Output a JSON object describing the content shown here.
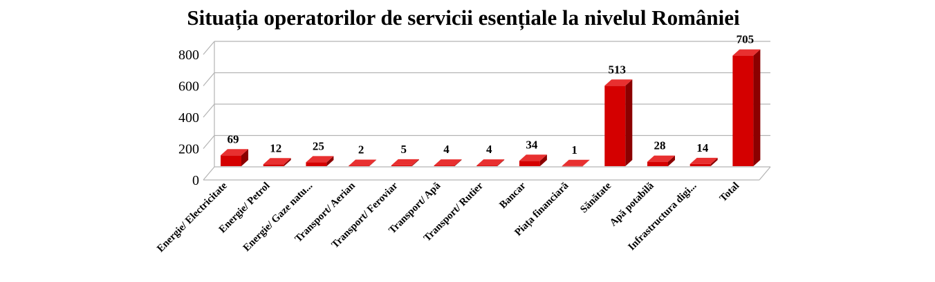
{
  "chart_data": {
    "type": "bar",
    "title": "Situația operatorilor de servicii esențiale la nivelul României",
    "categories": [
      "Energie/ Electricitate",
      "Energie/ Petrol",
      "Energie/ Gaze natu...",
      "Transport/ Aerian",
      "Transport/ Feroviar",
      "Transport/ Apă",
      "Transport/ Rutier",
      "Bancar",
      "Piața financiară",
      "Sănătate",
      "Apă potabilă",
      "Infrastructura digi...",
      "Total"
    ],
    "values": [
      69,
      12,
      25,
      2,
      5,
      4,
      4,
      34,
      1,
      513,
      28,
      14,
      705
    ],
    "ylim": [
      0,
      800
    ],
    "yticks": [
      0,
      200,
      400,
      600,
      800
    ],
    "xlabel": "",
    "ylabel": "",
    "grid": true,
    "legend": "none",
    "bar_color": "#d40000",
    "bar_side_color": "#8b0000",
    "bar_top_color": "#e83030"
  }
}
